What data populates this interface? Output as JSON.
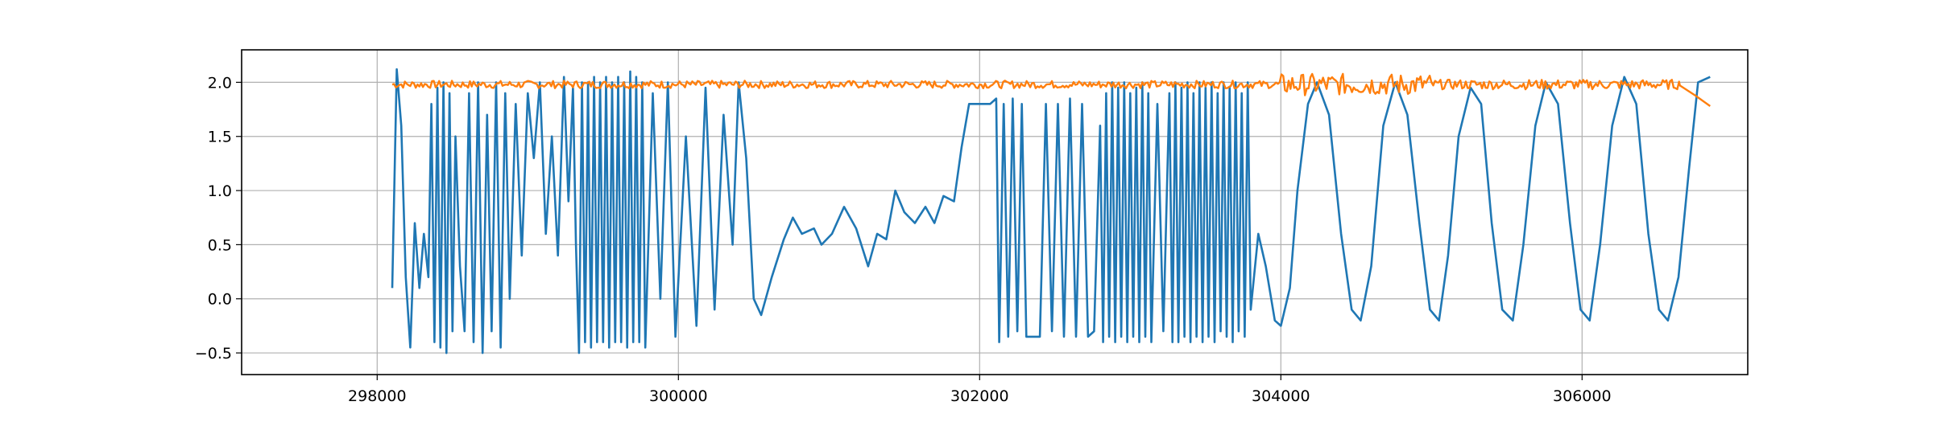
{
  "chart_data": {
    "type": "line",
    "title": "",
    "xlabel": "",
    "ylabel": "",
    "xlim": [
      297100,
      307100
    ],
    "ylim": [
      -0.7,
      2.3
    ],
    "grid": true,
    "x_ticks": [
      298000,
      300000,
      302000,
      304000,
      306000
    ],
    "x_tick_labels": [
      "298000",
      "300000",
      "302000",
      "304000",
      "306000"
    ],
    "y_ticks": [
      -0.5,
      0.0,
      0.5,
      1.0,
      1.5,
      2.0
    ],
    "y_tick_labels": [
      "−0.5",
      "0.0",
      "0.5",
      "1.0",
      "1.5",
      "2.0"
    ],
    "series": [
      {
        "color": "#1f77b4",
        "x_range": [
          298100,
          306850
        ],
        "points": [
          [
            298100,
            0.1
          ],
          [
            298130,
            2.12
          ],
          [
            298160,
            1.6
          ],
          [
            298190,
            0.2
          ],
          [
            298220,
            -0.45
          ],
          [
            298250,
            0.7
          ],
          [
            298280,
            0.1
          ],
          [
            298310,
            0.6
          ],
          [
            298340,
            0.2
          ],
          [
            298360,
            1.8
          ],
          [
            298380,
            -0.4
          ],
          [
            298400,
            1.95
          ],
          [
            298420,
            -0.45
          ],
          [
            298440,
            2.0
          ],
          [
            298460,
            -0.5
          ],
          [
            298480,
            1.9
          ],
          [
            298500,
            -0.3
          ],
          [
            298520,
            1.5
          ],
          [
            298550,
            0.3
          ],
          [
            298580,
            -0.3
          ],
          [
            298610,
            1.9
          ],
          [
            298640,
            -0.4
          ],
          [
            298670,
            2.0
          ],
          [
            298700,
            -0.5
          ],
          [
            298730,
            1.7
          ],
          [
            298760,
            -0.3
          ],
          [
            298790,
            2.0
          ],
          [
            298820,
            -0.45
          ],
          [
            298850,
            1.9
          ],
          [
            298880,
            0.0
          ],
          [
            298920,
            1.8
          ],
          [
            298960,
            0.4
          ],
          [
            299000,
            1.9
          ],
          [
            299040,
            1.3
          ],
          [
            299080,
            2.0
          ],
          [
            299120,
            0.6
          ],
          [
            299160,
            1.5
          ],
          [
            299200,
            0.4
          ],
          [
            299240,
            2.05
          ],
          [
            299270,
            0.9
          ],
          [
            299300,
            1.95
          ],
          [
            299320,
            0.5
          ],
          [
            299340,
            -0.5
          ],
          [
            299360,
            2.0
          ],
          [
            299380,
            -0.4
          ],
          [
            299400,
            2.0
          ],
          [
            299420,
            -0.45
          ],
          [
            299440,
            2.05
          ],
          [
            299460,
            -0.4
          ],
          [
            299480,
            2.0
          ],
          [
            299500,
            -0.4
          ],
          [
            299520,
            2.05
          ],
          [
            299540,
            -0.45
          ],
          [
            299560,
            2.0
          ],
          [
            299580,
            -0.4
          ],
          [
            299600,
            2.05
          ],
          [
            299620,
            -0.4
          ],
          [
            299640,
            2.0
          ],
          [
            299660,
            -0.45
          ],
          [
            299680,
            2.1
          ],
          [
            299700,
            -0.4
          ],
          [
            299720,
            2.05
          ],
          [
            299740,
            -0.4
          ],
          [
            299760,
            2.0
          ],
          [
            299780,
            -0.45
          ],
          [
            299830,
            1.9
          ],
          [
            299880,
            0.0
          ],
          [
            299930,
            2.0
          ],
          [
            299980,
            -0.35
          ],
          [
            300050,
            1.5
          ],
          [
            300120,
            -0.25
          ],
          [
            300180,
            1.95
          ],
          [
            300240,
            -0.1
          ],
          [
            300300,
            1.7
          ],
          [
            300360,
            0.5
          ],
          [
            300400,
            2.0
          ],
          [
            300450,
            1.3
          ],
          [
            300500,
            0.0
          ],
          [
            300550,
            -0.15
          ],
          [
            300620,
            0.2
          ],
          [
            300700,
            0.55
          ],
          [
            300760,
            0.75
          ],
          [
            300820,
            0.6
          ],
          [
            300900,
            0.65
          ],
          [
            300950,
            0.5
          ],
          [
            301020,
            0.6
          ],
          [
            301100,
            0.85
          ],
          [
            301180,
            0.65
          ],
          [
            301260,
            0.3
          ],
          [
            301320,
            0.6
          ],
          [
            301380,
            0.55
          ],
          [
            301440,
            1.0
          ],
          [
            301500,
            0.8
          ],
          [
            301570,
            0.7
          ],
          [
            301640,
            0.85
          ],
          [
            301700,
            0.7
          ],
          [
            301760,
            0.95
          ],
          [
            301830,
            0.9
          ],
          [
            301880,
            1.4
          ],
          [
            301930,
            1.8
          ],
          [
            302000,
            1.8
          ],
          [
            302070,
            1.8
          ],
          [
            302110,
            1.85
          ],
          [
            302130,
            -0.4
          ],
          [
            302160,
            1.8
          ],
          [
            302190,
            -0.35
          ],
          [
            302220,
            1.85
          ],
          [
            302250,
            -0.3
          ],
          [
            302280,
            1.8
          ],
          [
            302310,
            -0.35
          ],
          [
            302340,
            -0.35
          ],
          [
            302370,
            -0.35
          ],
          [
            302400,
            -0.35
          ],
          [
            302440,
            1.8
          ],
          [
            302480,
            -0.3
          ],
          [
            302520,
            1.8
          ],
          [
            302560,
            -0.35
          ],
          [
            302600,
            1.85
          ],
          [
            302640,
            -0.35
          ],
          [
            302680,
            1.8
          ],
          [
            302720,
            -0.35
          ],
          [
            302760,
            -0.3
          ],
          [
            302800,
            1.6
          ],
          [
            302820,
            -0.4
          ],
          [
            302840,
            1.9
          ],
          [
            302860,
            -0.35
          ],
          [
            302880,
            2.0
          ],
          [
            302900,
            -0.4
          ],
          [
            302920,
            1.95
          ],
          [
            302940,
            -0.35
          ],
          [
            302960,
            2.0
          ],
          [
            302980,
            -0.4
          ],
          [
            303000,
            1.9
          ],
          [
            303020,
            -0.35
          ],
          [
            303040,
            1.95
          ],
          [
            303060,
            -0.4
          ],
          [
            303080,
            2.0
          ],
          [
            303100,
            -0.35
          ],
          [
            303120,
            1.9
          ],
          [
            303140,
            -0.4
          ],
          [
            303180,
            1.8
          ],
          [
            303220,
            -0.3
          ],
          [
            303260,
            1.9
          ],
          [
            303280,
            -0.4
          ],
          [
            303300,
            2.0
          ],
          [
            303320,
            -0.4
          ],
          [
            303340,
            1.95
          ],
          [
            303360,
            -0.35
          ],
          [
            303380,
            2.0
          ],
          [
            303400,
            -0.4
          ],
          [
            303420,
            1.9
          ],
          [
            303440,
            -0.35
          ],
          [
            303460,
            2.0
          ],
          [
            303480,
            -0.4
          ],
          [
            303500,
            1.95
          ],
          [
            303520,
            -0.35
          ],
          [
            303540,
            2.0
          ],
          [
            303560,
            -0.4
          ],
          [
            303580,
            1.9
          ],
          [
            303600,
            -0.3
          ],
          [
            303620,
            2.0
          ],
          [
            303640,
            -0.35
          ],
          [
            303660,
            1.95
          ],
          [
            303680,
            -0.4
          ],
          [
            303700,
            2.0
          ],
          [
            303720,
            -0.3
          ],
          [
            303740,
            1.9
          ],
          [
            303760,
            -0.35
          ],
          [
            303780,
            2.0
          ],
          [
            303800,
            -0.1
          ],
          [
            303850,
            0.6
          ],
          [
            303900,
            0.3
          ],
          [
            303960,
            -0.2
          ],
          [
            304000,
            -0.25
          ],
          [
            304060,
            0.1
          ],
          [
            304110,
            1.0
          ],
          [
            304180,
            1.8
          ],
          [
            304240,
            2.0
          ],
          [
            304320,
            1.7
          ],
          [
            304400,
            0.6
          ],
          [
            304470,
            -0.1
          ],
          [
            304530,
            -0.2
          ],
          [
            304600,
            0.3
          ],
          [
            304680,
            1.6
          ],
          [
            304760,
            2.0
          ],
          [
            304840,
            1.7
          ],
          [
            304920,
            0.7
          ],
          [
            304990,
            -0.1
          ],
          [
            305050,
            -0.2
          ],
          [
            305110,
            0.4
          ],
          [
            305180,
            1.5
          ],
          [
            305260,
            1.95
          ],
          [
            305330,
            1.8
          ],
          [
            305400,
            0.7
          ],
          [
            305470,
            -0.1
          ],
          [
            305540,
            -0.2
          ],
          [
            305610,
            0.5
          ],
          [
            305690,
            1.6
          ],
          [
            305760,
            2.0
          ],
          [
            305840,
            1.8
          ],
          [
            305920,
            0.7
          ],
          [
            305990,
            -0.1
          ],
          [
            306050,
            -0.2
          ],
          [
            306120,
            0.5
          ],
          [
            306200,
            1.6
          ],
          [
            306280,
            2.05
          ],
          [
            306360,
            1.8
          ],
          [
            306440,
            0.6
          ],
          [
            306510,
            -0.1
          ],
          [
            306570,
            -0.2
          ],
          [
            306640,
            0.2
          ],
          [
            306710,
            1.2
          ],
          [
            306770,
            2.0
          ],
          [
            306850,
            2.05
          ]
        ]
      },
      {
        "color": "#ff7f0e",
        "x_range": [
          298100,
          306850
        ],
        "base": 1.98,
        "noise_segments": [
          {
            "from": 298100,
            "to": 304000,
            "amplitude": 0.035
          },
          {
            "from": 304000,
            "to": 305000,
            "amplitude": 0.1
          },
          {
            "from": 305000,
            "to": 306650,
            "amplitude": 0.045
          }
        ],
        "tail": [
          [
            306650,
            1.97
          ],
          [
            306750,
            1.88
          ],
          [
            306850,
            1.78
          ]
        ]
      }
    ]
  }
}
